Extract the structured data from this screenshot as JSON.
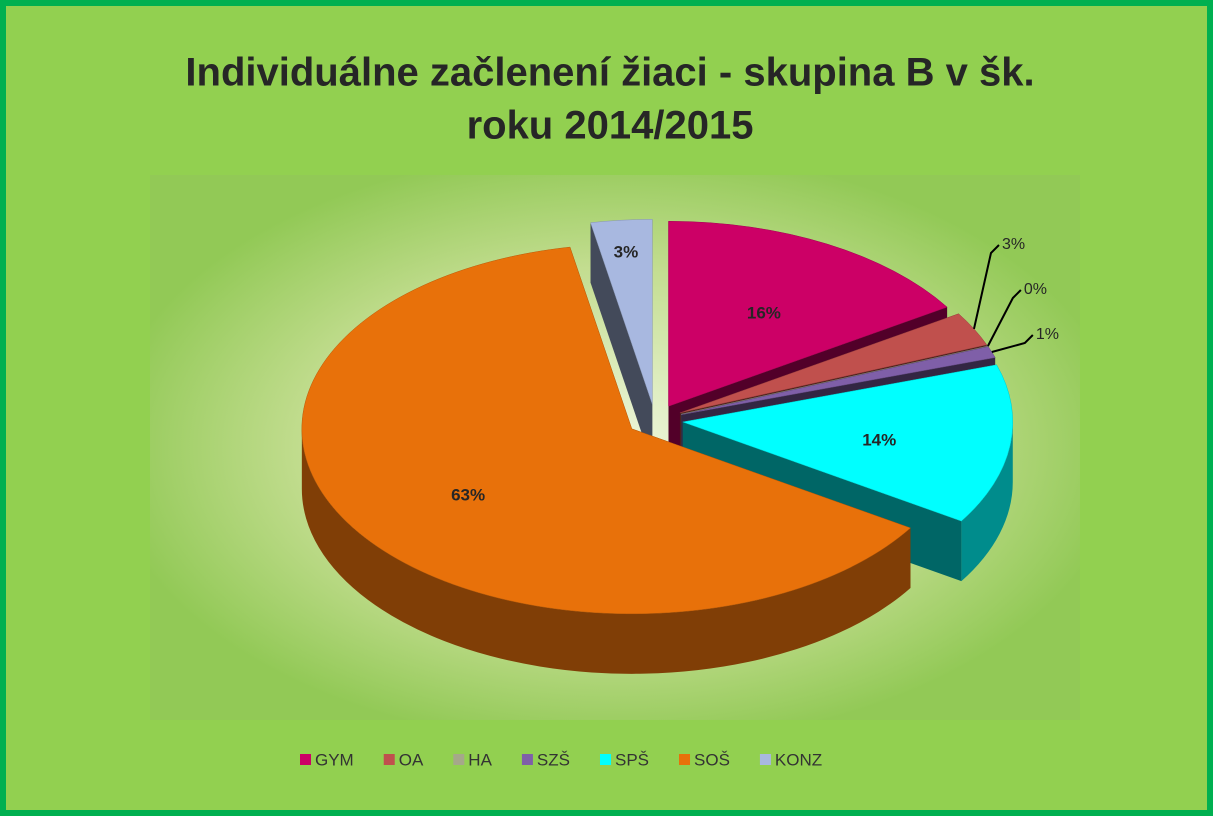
{
  "chart_data": {
    "type": "pie3d",
    "title": [
      "Individuálne začlenení žiaci - skupina B v šk.",
      "roku 2014/2015"
    ],
    "categories": [
      "GYM",
      "OA",
      "HA",
      "SZŠ",
      "SPŠ",
      "SOŠ",
      "KONZ"
    ],
    "values": [
      16,
      3,
      0,
      1,
      14,
      63,
      3
    ],
    "value_labels": [
      "16%",
      "3%",
      "0%",
      "1%",
      "14%",
      "63%",
      "3%"
    ],
    "colors": [
      "#cc0066",
      "#c0504d",
      "#a5a88a",
      "#7f5fa8",
      "#00ffff",
      "#e8710a",
      "#a8b8e0"
    ],
    "legend": "bottom"
  }
}
